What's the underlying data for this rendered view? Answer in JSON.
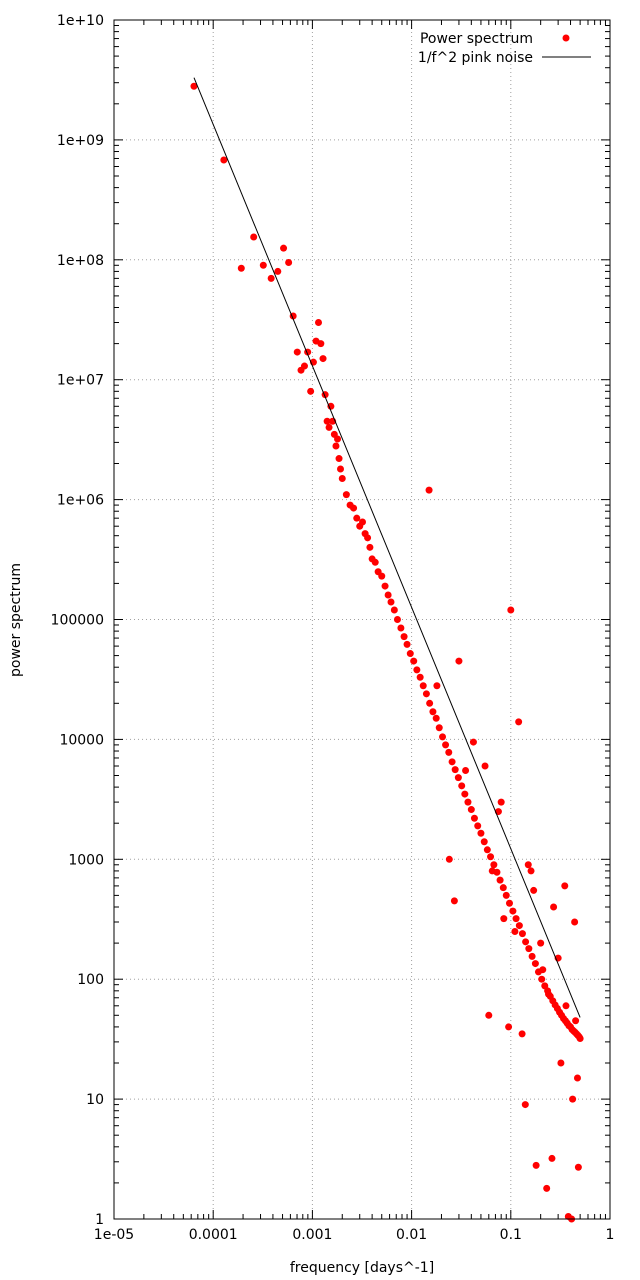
{
  "chart_data": {
    "type": "scatter",
    "title": "",
    "xlabel": "frequency [days^-1]",
    "ylabel": "power spectrum",
    "x_scale": "log",
    "y_scale": "log",
    "xlim": [
      1e-05,
      1
    ],
    "ylim": [
      1,
      10000000000.0
    ],
    "grid": true,
    "legend_position": "top-right",
    "x_ticks": [
      {
        "value": 1e-05,
        "label": "1e-05"
      },
      {
        "value": 0.0001,
        "label": "0.0001"
      },
      {
        "value": 0.001,
        "label": "0.001"
      },
      {
        "value": 0.01,
        "label": "0.01"
      },
      {
        "value": 0.1,
        "label": "0.1"
      },
      {
        "value": 1,
        "label": "1"
      }
    ],
    "y_ticks": [
      {
        "value": 1,
        "label": "1"
      },
      {
        "value": 10,
        "label": "10"
      },
      {
        "value": 100,
        "label": "100"
      },
      {
        "value": 1000,
        "label": "1000"
      },
      {
        "value": 10000,
        "label": "10000"
      },
      {
        "value": 100000,
        "label": "100000"
      },
      {
        "value": 1000000,
        "label": "1e+06"
      },
      {
        "value": 10000000,
        "label": "1e+07"
      },
      {
        "value": 100000000,
        "label": "1e+08"
      },
      {
        "value": 1000000000,
        "label": "1e+09"
      },
      {
        "value": 10000000000,
        "label": "1e+10"
      }
    ],
    "series": [
      {
        "name": "Power spectrum",
        "kind": "points",
        "color": "#ff0000",
        "x": [
          6.4e-05,
          0.000128,
          0.000192,
          0.000256,
          0.00032,
          0.000384,
          0.000448,
          0.000512,
          0.000576,
          0.00064,
          0.000704,
          0.000768,
          0.000832,
          0.000896,
          0.00096,
          0.001024,
          0.001088,
          0.001152,
          0.001216,
          0.00128,
          0.001344,
          0.001408,
          0.001472,
          0.001536,
          0.0016,
          0.001664,
          0.001728,
          0.001792,
          0.001856,
          0.00192,
          0.002,
          0.0022,
          0.0024,
          0.0026,
          0.0028,
          0.003,
          0.0032,
          0.0034,
          0.0036,
          0.0038,
          0.004,
          0.0043,
          0.0046,
          0.005,
          0.0054,
          0.0058,
          0.0062,
          0.0067,
          0.0072,
          0.0078,
          0.0084,
          0.009,
          0.0097,
          0.0105,
          0.0113,
          0.0122,
          0.0131,
          0.0141,
          0.0152,
          0.0164,
          0.0177,
          0.019,
          0.0205,
          0.022,
          0.0237,
          0.0256,
          0.0275,
          0.0296,
          0.032,
          0.0344,
          0.037,
          0.04,
          0.043,
          0.0464,
          0.05,
          0.054,
          0.058,
          0.0625,
          0.0675,
          0.0725,
          0.078,
          0.084,
          0.09,
          0.097,
          0.105,
          0.113,
          0.122,
          0.131,
          0.141,
          0.152,
          0.164,
          0.177,
          0.19,
          0.205,
          0.22,
          0.235,
          0.25,
          0.265,
          0.28,
          0.295,
          0.31,
          0.325,
          0.34,
          0.355,
          0.37,
          0.385,
          0.4,
          0.415,
          0.43,
          0.445,
          0.46,
          0.475,
          0.49,
          0.5,
          0.027,
          0.035,
          0.06,
          0.08,
          0.1,
          0.12,
          0.14,
          0.16,
          0.18,
          0.2,
          0.23,
          0.26,
          0.3,
          0.35,
          0.38,
          0.42,
          0.45,
          0.48,
          0.015,
          0.018,
          0.024,
          0.03,
          0.042,
          0.055,
          0.065,
          0.075,
          0.085,
          0.095,
          0.11,
          0.13,
          0.15,
          0.17,
          0.21,
          0.24,
          0.27,
          0.32,
          0.36,
          0.41,
          0.44,
          0.47
        ],
        "y": [
          2800000000,
          680000000,
          85000000,
          155000000,
          90000000,
          70000000,
          80000000,
          125000000,
          95000000,
          34000000,
          17000000,
          12000000,
          13000000,
          17000000,
          8000000,
          14000000,
          21000000,
          30000000,
          20000000,
          15000000,
          7500000,
          4500000,
          4000000,
          6000000,
          4500000,
          3500000,
          2800000,
          3200000,
          2200000,
          1800000,
          1500000,
          1100000,
          900000,
          850000,
          700000,
          600000,
          650000,
          520000,
          480000,
          400000,
          320000,
          300000,
          250000,
          230000,
          190000,
          160000,
          140000,
          120000,
          100000,
          85000,
          72000,
          62000,
          52000,
          45000,
          38000,
          33000,
          28000,
          24000,
          20000,
          17000,
          15000,
          12500,
          10500,
          9000,
          7800,
          6500,
          5600,
          4800,
          4100,
          3500,
          3000,
          2600,
          2200,
          1900,
          1650,
          1400,
          1200,
          1050,
          900,
          780,
          670,
          580,
          500,
          430,
          370,
          320,
          280,
          240,
          205,
          180,
          155,
          135,
          115,
          100,
          88,
          80,
          72,
          66,
          61,
          57,
          53,
          50,
          47,
          45,
          43,
          41,
          40,
          38,
          37,
          36,
          35,
          34,
          33,
          32,
          450,
          5500,
          50,
          3000,
          120000,
          14000,
          9,
          800,
          2.8,
          200,
          1.8,
          3.2,
          150,
          600,
          1.05,
          10,
          45,
          2.7,
          1200000,
          28000,
          1000,
          45000,
          9500,
          6000,
          800,
          2500,
          320,
          40,
          250,
          35,
          900,
          550,
          120,
          75,
          400,
          20,
          60,
          1.0,
          300,
          15
        ]
      },
      {
        "name": "1/f^2 pink noise",
        "kind": "line",
        "color": "#000000",
        "x": [
          6.4e-05,
          0.5
        ],
        "y": [
          3300000000,
          48
        ]
      }
    ]
  }
}
